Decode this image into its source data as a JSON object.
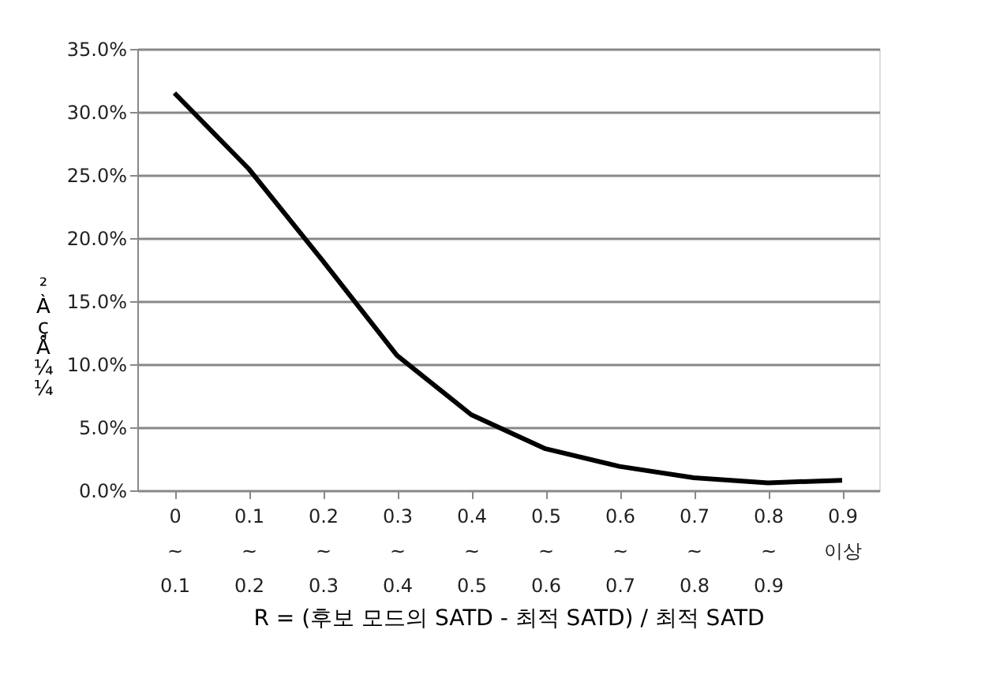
{
  "chart_data": {
    "type": "line",
    "xlabel": "R = (후보 모드의 SATD - 최적 SATD) /  최적 SATD",
    "ylabel": "²ÀçÅ¼¼",
    "categories": [
      "0\n~\n0.1",
      "0.1\n~\n0.2",
      "0.2\n~\n0.3",
      "0.3\n~\n0.4",
      "0.4\n~\n0.5",
      "0.5\n~\n0.6",
      "0.6\n~\n0.7",
      "0.7\n~\n0.8",
      "0.8\n~\n0.9",
      "0.9\n이상"
    ],
    "series": [
      {
        "color": "#000000",
        "values": [
          31.5,
          25.5,
          18.2,
          10.7,
          6.0,
          3.3,
          1.9,
          1.0,
          0.6,
          0.8
        ]
      }
    ],
    "ylim": [
      0,
      35
    ],
    "yticks": [
      {
        "value": 0,
        "label": "0.0%"
      },
      {
        "value": 5,
        "label": "5.0%"
      },
      {
        "value": 10,
        "label": "10.0%"
      },
      {
        "value": 15,
        "label": "15.0%"
      },
      {
        "value": 20,
        "label": "20.0%"
      },
      {
        "value": 25,
        "label": "25.0%"
      },
      {
        "value": 30,
        "label": "30.0%"
      },
      {
        "value": 35,
        "label": "35.0%"
      }
    ],
    "grid": "y",
    "marker": "none",
    "line_style": "solid"
  }
}
